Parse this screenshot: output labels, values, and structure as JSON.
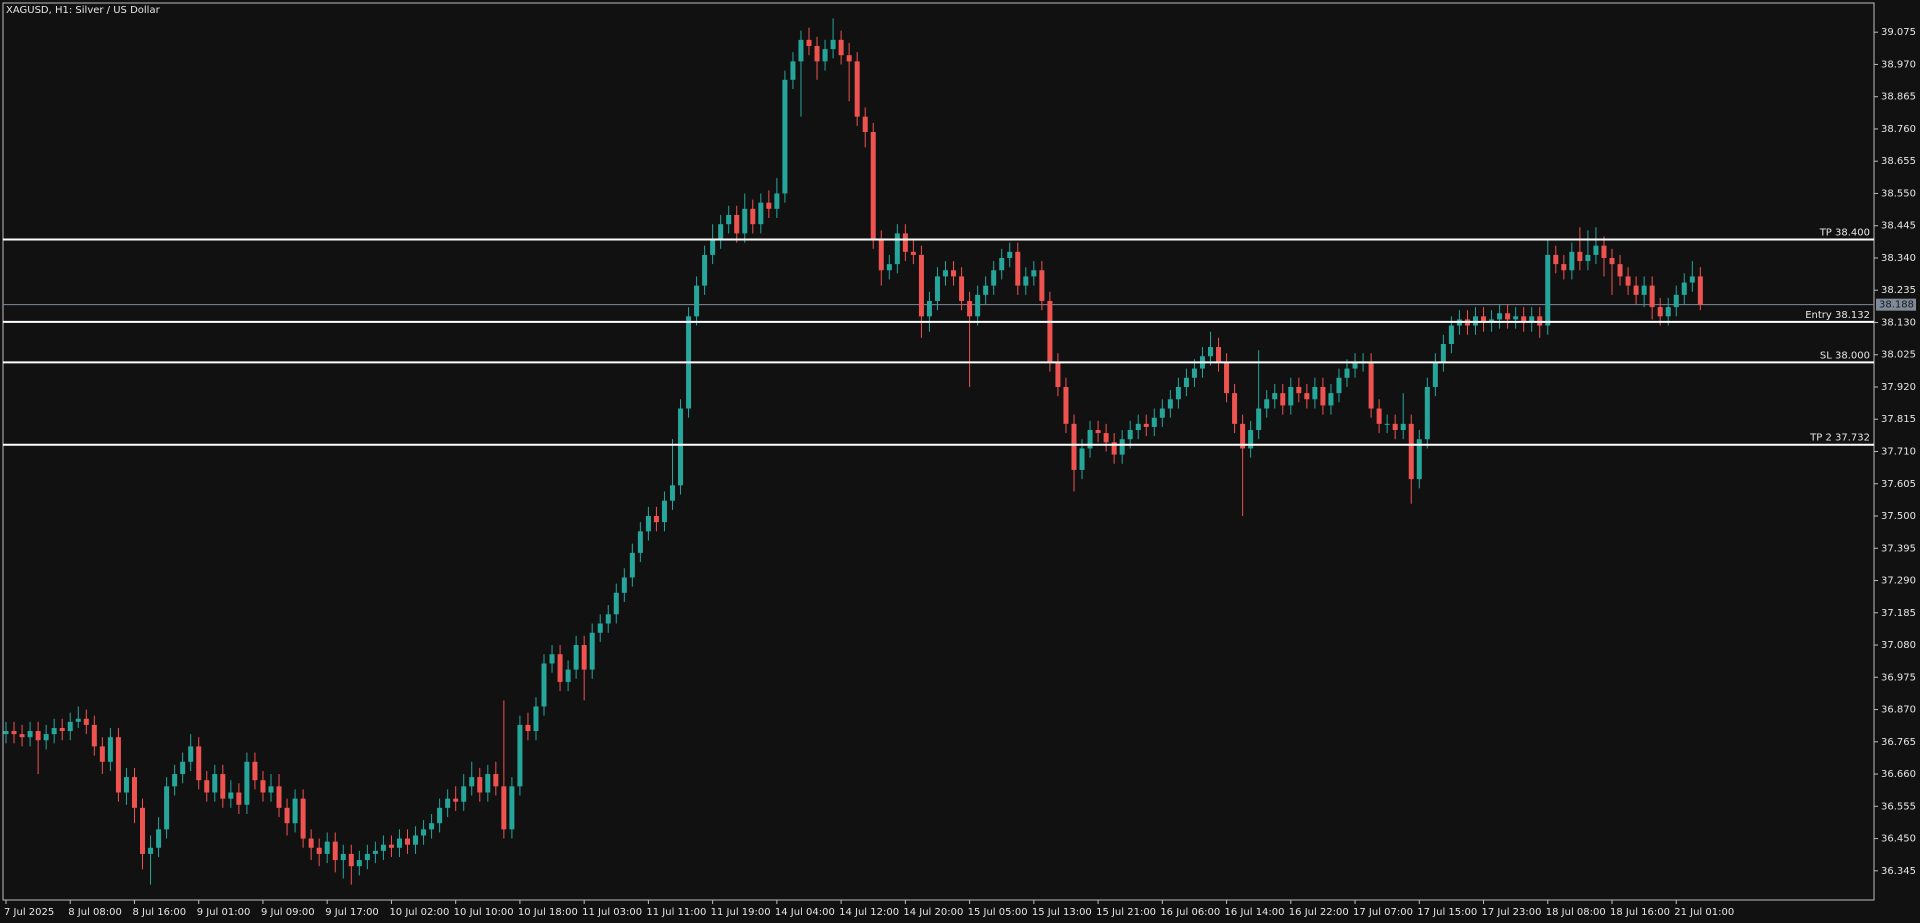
{
  "chart_data": {
    "type": "candlestick",
    "title": "XAGUSD, H1:  Silver / US Dollar",
    "categories": [
      "7 Jul 2025",
      null,
      null,
      null,
      null,
      null,
      null,
      null,
      "8 Jul 08:00",
      null,
      null,
      null,
      null,
      null,
      null,
      null,
      "8 Jul 16:00",
      null,
      null,
      null,
      null,
      null,
      null,
      null,
      "9 Jul 01:00",
      null,
      null,
      null,
      null,
      null,
      null,
      null,
      "9 Jul 09:00",
      null,
      null,
      null,
      null,
      null,
      null,
      null,
      "9 Jul 17:00",
      null,
      null,
      null,
      null,
      null,
      null,
      null,
      "10 Jul 02:00",
      null,
      null,
      null,
      null,
      null,
      null,
      null,
      "10 Jul 10:00",
      null,
      null,
      null,
      null,
      null,
      null,
      null,
      "10 Jul 18:00",
      null,
      null,
      null,
      null,
      null,
      null,
      null,
      "11 Jul 03:00",
      null,
      null,
      null,
      null,
      null,
      null,
      null,
      "11 Jul 11:00",
      null,
      null,
      null,
      null,
      null,
      null,
      null,
      "11 Jul 19:00",
      null,
      null,
      null,
      null,
      null,
      null,
      null,
      "14 Jul 04:00",
      null,
      null,
      null,
      null,
      null,
      null,
      null,
      "14 Jul 12:00",
      null,
      null,
      null,
      null,
      null,
      null,
      null,
      "14 Jul 20:00",
      null,
      null,
      null,
      null,
      null,
      null,
      null,
      "15 Jul 05:00",
      null,
      null,
      null,
      null,
      null,
      null,
      null,
      "15 Jul 13:00",
      null,
      null,
      null,
      null,
      null,
      null,
      null,
      "15 Jul 21:00",
      null,
      null,
      null,
      null,
      null,
      null,
      null,
      "16 Jul 06:00",
      null,
      null,
      null,
      null,
      null,
      null,
      null,
      "16 Jul 14:00",
      null,
      null,
      null,
      null,
      null,
      null,
      null,
      "16 Jul 22:00",
      null,
      null,
      null,
      null,
      null,
      null,
      null,
      "17 Jul 07:00",
      null,
      null,
      null,
      null,
      null,
      null,
      null,
      "17 Jul 15:00",
      null,
      null,
      null,
      null,
      null,
      null,
      null,
      "17 Jul 23:00",
      null,
      null,
      null,
      null,
      null,
      null,
      null,
      "18 Jul 08:00",
      null,
      null,
      null,
      null,
      null,
      null,
      null,
      "18 Jul 16:00",
      null,
      null,
      null,
      null,
      null,
      null,
      null,
      "21 Jul 01:00",
      null,
      null,
      null
    ],
    "open": [
      36.79,
      36.8,
      36.79,
      36.78,
      36.8,
      36.77,
      36.79,
      36.81,
      36.8,
      36.83,
      36.84,
      36.82,
      36.75,
      36.7,
      36.78,
      36.6,
      36.65,
      36.55,
      36.4,
      36.42,
      36.48,
      36.62,
      36.66,
      36.7,
      36.75,
      36.64,
      36.6,
      36.66,
      36.58,
      36.6,
      36.56,
      36.7,
      36.64,
      36.6,
      36.62,
      36.55,
      36.5,
      36.58,
      36.45,
      36.42,
      36.4,
      36.44,
      36.38,
      36.4,
      36.36,
      36.38,
      36.4,
      36.41,
      36.43,
      36.42,
      36.45,
      36.43,
      36.46,
      36.48,
      36.5,
      36.55,
      36.58,
      36.57,
      36.62,
      36.65,
      36.6,
      36.66,
      36.62,
      36.48,
      36.62,
      36.82,
      36.8,
      36.88,
      37.02,
      37.05,
      36.96,
      37.0,
      37.08,
      37.0,
      37.12,
      37.15,
      37.18,
      37.25,
      37.3,
      37.38,
      37.45,
      37.5,
      37.48,
      37.55,
      37.6,
      37.85,
      38.15,
      38.25,
      38.35,
      38.4,
      38.45,
      38.48,
      38.42,
      38.5,
      38.45,
      38.52,
      38.5,
      38.55,
      38.92,
      38.98,
      39.05,
      39.03,
      38.98,
      39.02,
      39.05,
      39.0,
      38.98,
      38.8,
      38.75,
      38.4,
      38.3,
      38.32,
      38.42,
      38.36,
      38.35,
      38.15,
      38.2,
      38.28,
      38.3,
      38.28,
      38.2,
      38.15,
      38.22,
      38.25,
      38.3,
      38.34,
      38.36,
      38.25,
      38.28,
      38.3,
      38.2,
      38.0,
      37.92,
      37.8,
      37.65,
      37.72,
      37.78,
      37.77,
      37.74,
      37.7,
      37.75,
      37.78,
      37.8,
      37.79,
      37.82,
      37.85,
      37.88,
      37.92,
      37.95,
      37.98,
      38.02,
      38.05,
      38.0,
      37.9,
      37.8,
      37.72,
      37.78,
      37.85,
      37.88,
      37.9,
      37.86,
      37.92,
      37.9,
      37.88,
      37.92,
      37.86,
      37.9,
      37.95,
      37.98,
      38.0,
      38.0,
      37.85,
      37.8,
      37.8,
      37.78,
      37.8,
      37.62,
      37.75,
      37.92,
      38.0,
      38.06,
      38.12,
      38.14,
      38.12,
      38.15,
      38.13,
      38.14,
      38.16,
      38.14,
      38.15,
      38.13,
      38.15,
      38.12,
      38.35,
      38.32,
      38.3,
      38.36,
      38.33,
      38.35,
      38.38,
      38.34,
      38.32,
      38.28,
      38.25,
      38.22,
      38.25,
      38.18,
      38.15,
      38.18,
      38.22,
      38.26,
      38.28
    ],
    "high": [
      36.83,
      36.83,
      36.82,
      36.83,
      36.83,
      36.82,
      36.84,
      36.84,
      36.86,
      36.88,
      36.87,
      36.85,
      36.78,
      36.81,
      36.81,
      36.68,
      36.68,
      36.58,
      36.46,
      36.52,
      36.65,
      36.69,
      36.73,
      36.79,
      36.78,
      36.67,
      36.69,
      36.69,
      36.64,
      36.63,
      36.73,
      36.73,
      36.67,
      36.66,
      36.66,
      36.58,
      36.61,
      36.61,
      36.48,
      36.45,
      36.47,
      36.47,
      36.43,
      36.43,
      36.41,
      36.43,
      36.44,
      36.46,
      36.46,
      36.48,
      36.48,
      36.49,
      36.51,
      36.53,
      36.58,
      36.61,
      36.62,
      36.66,
      36.7,
      36.68,
      36.69,
      36.7,
      36.9,
      36.65,
      36.85,
      36.86,
      36.91,
      37.05,
      37.08,
      37.08,
      37.03,
      37.11,
      37.11,
      37.15,
      37.18,
      37.21,
      37.28,
      37.33,
      37.41,
      37.48,
      37.53,
      37.53,
      37.58,
      37.75,
      37.88,
      38.18,
      38.28,
      38.38,
      38.45,
      38.48,
      38.51,
      38.51,
      38.55,
      38.53,
      38.55,
      38.56,
      38.6,
      38.95,
      39.01,
      39.08,
      39.09,
      39.06,
      39.05,
      39.12,
      39.08,
      39.04,
      39.01,
      38.83,
      38.78,
      38.43,
      38.35,
      38.45,
      38.45,
      38.4,
      38.38,
      38.23,
      38.31,
      38.33,
      38.33,
      38.31,
      38.23,
      38.25,
      38.28,
      38.33,
      38.37,
      38.39,
      38.39,
      38.31,
      38.33,
      38.33,
      38.23,
      38.03,
      37.95,
      37.83,
      37.75,
      37.81,
      37.81,
      37.8,
      37.77,
      37.78,
      37.81,
      37.83,
      37.83,
      37.85,
      37.88,
      37.91,
      37.95,
      37.98,
      38.01,
      38.05,
      38.1,
      38.08,
      38.03,
      37.93,
      37.83,
      37.81,
      38.04,
      37.91,
      37.93,
      37.93,
      37.95,
      37.95,
      37.93,
      37.95,
      37.95,
      37.93,
      37.98,
      38.01,
      38.03,
      38.03,
      38.03,
      37.88,
      37.83,
      37.83,
      37.9,
      37.83,
      37.78,
      37.95,
      38.03,
      38.09,
      38.15,
      38.17,
      38.17,
      38.18,
      38.18,
      38.17,
      38.19,
      38.19,
      38.18,
      38.18,
      38.18,
      38.18,
      38.4,
      38.38,
      38.35,
      38.39,
      38.44,
      38.43,
      38.44,
      38.41,
      38.37,
      38.35,
      38.31,
      38.28,
      38.28,
      38.28,
      38.21,
      38.21,
      38.25,
      38.29,
      38.33,
      38.31
    ],
    "low": [
      36.76,
      36.76,
      36.75,
      36.75,
      36.66,
      36.74,
      36.76,
      36.77,
      36.77,
      36.81,
      36.79,
      36.72,
      36.66,
      36.67,
      36.57,
      36.56,
      36.5,
      36.35,
      36.3,
      36.39,
      36.45,
      36.59,
      36.63,
      36.67,
      36.61,
      36.57,
      36.57,
      36.55,
      36.55,
      36.53,
      36.53,
      36.61,
      36.57,
      36.57,
      36.52,
      36.46,
      36.47,
      36.42,
      36.38,
      36.36,
      36.37,
      36.34,
      36.32,
      36.3,
      36.33,
      36.35,
      36.37,
      36.38,
      36.39,
      36.39,
      36.4,
      36.4,
      36.43,
      36.45,
      36.47,
      36.52,
      36.54,
      36.54,
      36.59,
      36.57,
      36.57,
      36.59,
      36.45,
      36.45,
      36.59,
      36.77,
      36.77,
      36.85,
      36.99,
      36.93,
      36.93,
      36.97,
      36.9,
      36.97,
      37.09,
      37.12,
      37.15,
      37.22,
      37.27,
      37.35,
      37.42,
      37.45,
      37.45,
      37.52,
      37.57,
      37.82,
      38.12,
      38.22,
      38.32,
      38.37,
      38.42,
      38.39,
      38.39,
      38.42,
      38.42,
      38.47,
      38.47,
      38.52,
      38.89,
      38.8,
      39.0,
      38.92,
      38.95,
      38.99,
      38.97,
      38.85,
      38.77,
      38.7,
      38.37,
      38.25,
      38.27,
      38.29,
      38.33,
      38.32,
      38.08,
      38.1,
      38.17,
      38.25,
      38.25,
      38.17,
      37.92,
      38.12,
      38.19,
      38.22,
      38.27,
      38.31,
      38.22,
      38.22,
      38.25,
      38.17,
      37.97,
      37.89,
      37.77,
      37.58,
      37.62,
      37.69,
      37.74,
      37.71,
      37.67,
      37.67,
      37.72,
      37.75,
      37.76,
      37.76,
      37.79,
      37.82,
      37.85,
      37.89,
      37.92,
      37.95,
      37.99,
      37.97,
      37.87,
      37.77,
      37.5,
      37.69,
      37.75,
      37.82,
      37.85,
      37.83,
      37.83,
      37.87,
      37.85,
      37.85,
      37.83,
      37.83,
      37.87,
      37.92,
      37.95,
      37.97,
      37.82,
      37.77,
      37.77,
      37.75,
      37.75,
      37.54,
      37.59,
      37.72,
      37.89,
      37.97,
      38.03,
      38.09,
      38.09,
      38.09,
      38.1,
      38.1,
      38.11,
      38.11,
      38.11,
      38.1,
      38.1,
      38.08,
      38.09,
      38.29,
      38.27,
      38.27,
      38.3,
      38.3,
      38.32,
      38.28,
      38.22,
      38.25,
      38.22,
      38.19,
      38.18,
      38.14,
      38.12,
      38.12,
      38.15,
      38.19,
      38.23,
      38.17
    ],
    "close": [
      36.8,
      36.79,
      36.78,
      36.8,
      36.77,
      36.79,
      36.81,
      36.8,
      36.83,
      36.84,
      36.82,
      36.75,
      36.7,
      36.78,
      36.6,
      36.65,
      36.55,
      36.4,
      36.42,
      36.48,
      36.62,
      36.66,
      36.7,
      36.75,
      36.64,
      36.6,
      36.66,
      36.58,
      36.6,
      36.56,
      36.7,
      36.64,
      36.6,
      36.62,
      36.55,
      36.5,
      36.58,
      36.45,
      36.42,
      36.4,
      36.44,
      36.38,
      36.4,
      36.36,
      36.38,
      36.4,
      36.41,
      36.43,
      36.42,
      36.45,
      36.43,
      36.46,
      36.48,
      36.5,
      36.55,
      36.58,
      36.57,
      36.62,
      36.65,
      36.6,
      36.66,
      36.62,
      36.48,
      36.62,
      36.82,
      36.8,
      36.88,
      37.02,
      37.05,
      36.96,
      37.0,
      37.08,
      37.0,
      37.12,
      37.15,
      37.18,
      37.25,
      37.3,
      37.38,
      37.45,
      37.5,
      37.48,
      37.55,
      37.6,
      37.85,
      38.15,
      38.25,
      38.35,
      38.4,
      38.45,
      38.48,
      38.42,
      38.5,
      38.45,
      38.52,
      38.5,
      38.55,
      38.92,
      38.98,
      39.05,
      39.03,
      38.98,
      39.02,
      39.05,
      39.0,
      38.98,
      38.8,
      38.75,
      38.4,
      38.3,
      38.32,
      38.42,
      38.36,
      38.35,
      38.15,
      38.2,
      38.28,
      38.3,
      38.28,
      38.2,
      38.15,
      38.22,
      38.25,
      38.3,
      38.34,
      38.36,
      38.25,
      38.28,
      38.3,
      38.2,
      38.0,
      37.92,
      37.8,
      37.65,
      37.72,
      37.78,
      37.77,
      37.74,
      37.7,
      37.75,
      37.78,
      37.8,
      37.79,
      37.82,
      37.85,
      37.88,
      37.92,
      37.95,
      37.98,
      38.02,
      38.05,
      38.0,
      37.9,
      37.8,
      37.72,
      37.78,
      37.85,
      37.88,
      37.9,
      37.86,
      37.92,
      37.9,
      37.88,
      37.92,
      37.86,
      37.9,
      37.95,
      37.98,
      38.0,
      38.0,
      37.85,
      37.8,
      37.8,
      37.78,
      37.8,
      37.62,
      37.75,
      37.92,
      38.0,
      38.06,
      38.12,
      38.14,
      38.12,
      38.15,
      38.13,
      38.14,
      38.16,
      38.14,
      38.15,
      38.13,
      38.15,
      38.12,
      38.35,
      38.32,
      38.3,
      38.36,
      38.33,
      38.35,
      38.38,
      38.34,
      38.32,
      38.28,
      38.25,
      38.22,
      38.25,
      38.18,
      38.15,
      38.18,
      38.22,
      38.26,
      38.28,
      38.188
    ],
    "up_color": "#26a69a",
    "down_color": "#ef5350",
    "ylim": [
      36.25,
      39.17
    ],
    "yticks": [
      39.075,
      {
        "value": 38.97,
        "label": "38.970"
      },
      38.865,
      {
        "value": 38.76,
        "label": "38.760"
      },
      38.655,
      {
        "value": 38.55,
        "label": "38.550"
      },
      38.445,
      {
        "value": 38.34,
        "label": "38.340"
      },
      38.235,
      {
        "value": 38.13,
        "label": "38.130"
      },
      38.025,
      {
        "value": 37.92,
        "label": "37.920"
      },
      37.815,
      {
        "value": 37.71,
        "label": "37.710"
      },
      37.605,
      {
        "value": 37.5,
        "label": "37.500"
      },
      37.395,
      {
        "value": 37.29,
        "label": "37.290"
      },
      37.185,
      {
        "value": 37.08,
        "label": "37.080"
      },
      36.975,
      {
        "value": 36.87,
        "label": "36.870"
      },
      36.765,
      {
        "value": 36.66,
        "label": "36.660"
      },
      36.555,
      {
        "value": 36.45,
        "label": "36.450"
      },
      36.345
    ],
    "levels": [
      {
        "label": "TP 38.400",
        "value": 38.4
      },
      {
        "label": "Entry 38.132",
        "value": 38.132
      },
      {
        "label": "SL 38.000",
        "value": 38.0
      },
      {
        "label": "TP 2 37.732",
        "value": 37.732
      }
    ],
    "current_price": 38.188,
    "grid": false
  }
}
